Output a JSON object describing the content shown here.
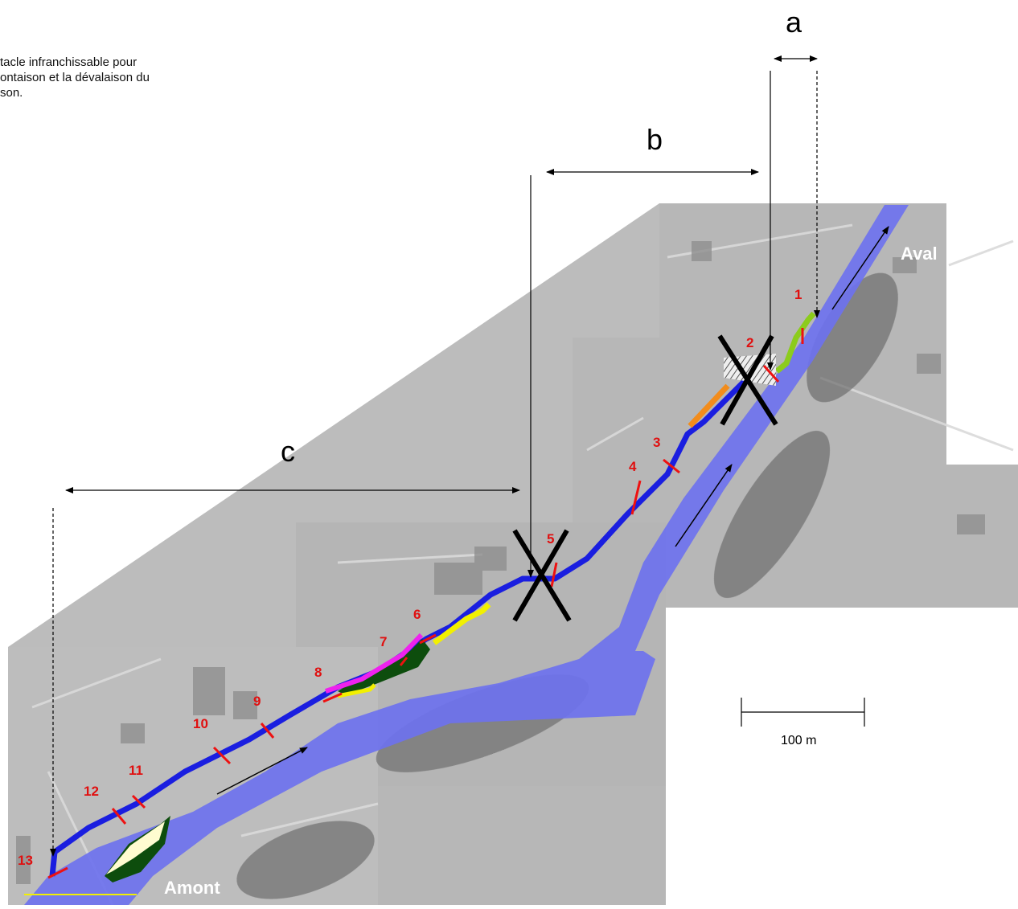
{
  "legend": {
    "note_line1": "tacle infranchissable pour",
    "note_line2": "ontaison et la dévalaison du",
    "note_line3": "son."
  },
  "reach_labels": {
    "a": "a",
    "b": "b",
    "c": "c"
  },
  "places": {
    "downstream": "Aval",
    "upstream": "Amont"
  },
  "scale_bar": {
    "label": "100 m"
  },
  "stations": [
    "1",
    "2",
    "3",
    "4",
    "5",
    "6",
    "7",
    "8",
    "9",
    "10",
    "11",
    "12",
    "13"
  ],
  "colors": {
    "river": "#6e72ee",
    "channel": "#1a1ee0",
    "station_mark": "#e11",
    "station_label": "#e01010",
    "green_segment": "#8ccc1c",
    "orange_segment": "#f28c1c",
    "yellow_segment": "#f2f000",
    "magenta_segment": "#ee22ee",
    "dark_green_zone": "#0d4d0d",
    "barrier_cross": "#000000"
  }
}
